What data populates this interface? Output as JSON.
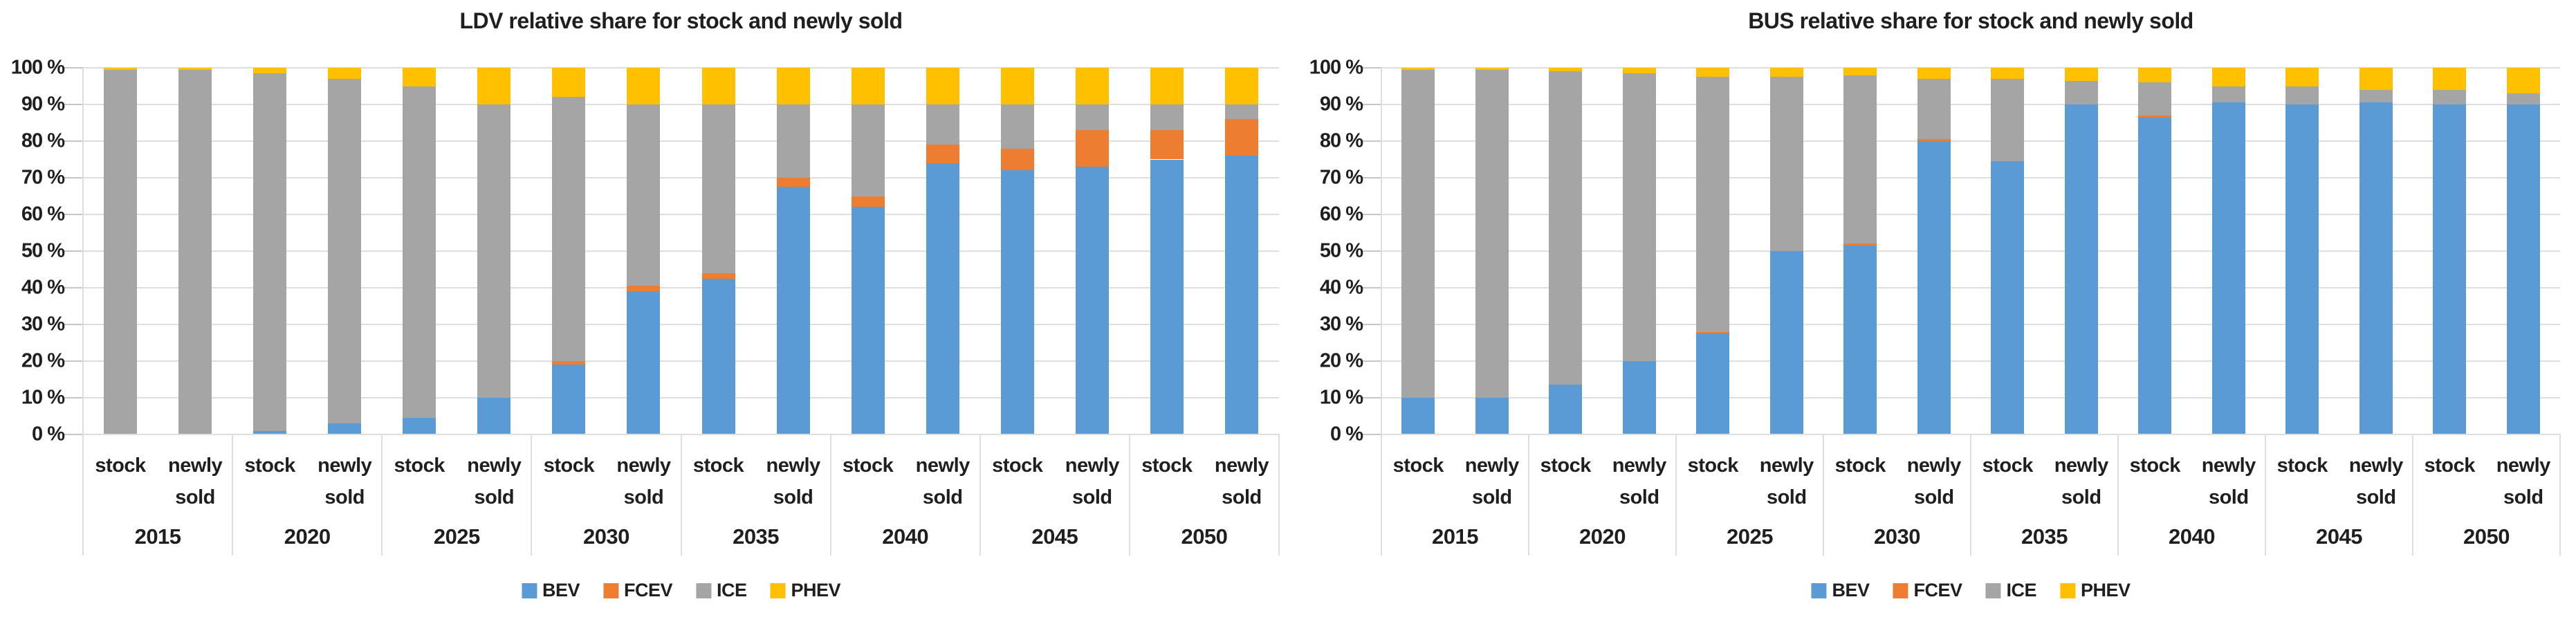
{
  "figure": {
    "background": "#FFFFFF",
    "grid_color": "#DEDEDE",
    "axis_color": "#C6C6C6",
    "text_color": "#1F1F1F",
    "legend_labels": [
      "BEV",
      "FCEV",
      "ICE",
      "PHEV"
    ],
    "series_colors": {
      "BEV": "#5B9BD5",
      "FCEV": "#ED7D31",
      "ICE": "#A5A5A5",
      "PHEV": "#FFC000"
    }
  },
  "chart_data": [
    {
      "id": "ldv",
      "type": "bar",
      "stacked": true,
      "unit": "%",
      "title": "LDV relative share for stock and newly sold",
      "ylim": [
        0,
        100
      ],
      "grid": true,
      "legend_position": "bottom",
      "ytick_labels": [
        "100 %",
        "90 %",
        "80 %",
        "70 %",
        "60 %",
        "50 %",
        "40 %",
        "30 %",
        "20 %",
        "10 %",
        "0 %"
      ],
      "years": [
        "2015",
        "2020",
        "2025",
        "2030",
        "2035",
        "2040",
        "2045",
        "2050"
      ],
      "bar_types": [
        "stock",
        "newly sold"
      ],
      "categories": [
        "2015 stock",
        "2015 newly sold",
        "2020 stock",
        "2020 newly sold",
        "2025 stock",
        "2025 newly sold",
        "2030 stock",
        "2030 newly sold",
        "2035 stock",
        "2035 newly sold",
        "2040 stock",
        "2040 newly sold",
        "2045 stock",
        "2045 newly sold",
        "2050 stock",
        "2050 newly sold"
      ],
      "series": [
        {
          "name": "BEV",
          "color": "#5B9BD5",
          "values": [
            0,
            0,
            1,
            3,
            4.5,
            10,
            19,
            39,
            42.5,
            67.5,
            62,
            74,
            72,
            73,
            75,
            76
          ]
        },
        {
          "name": "FCEV",
          "color": "#ED7D31",
          "values": [
            0,
            0,
            0,
            0,
            0,
            0,
            1,
            1.5,
            1.5,
            2.5,
            3,
            5,
            6,
            10,
            8,
            10
          ]
        },
        {
          "name": "ICE",
          "color": "#A5A5A5",
          "values": [
            99.5,
            99.5,
            97.5,
            94,
            90.5,
            80,
            72,
            49.5,
            46,
            20,
            25,
            11,
            12,
            7,
            7,
            4
          ]
        },
        {
          "name": "PHEV",
          "color": "#FFC000",
          "values": [
            0.5,
            0.5,
            1.5,
            3,
            5,
            10,
            8,
            10,
            10,
            10,
            10,
            10,
            10,
            10,
            10,
            10
          ]
        }
      ]
    },
    {
      "id": "bus",
      "type": "bar",
      "stacked": true,
      "unit": "%",
      "title": "BUS relative share for stock and newly sold",
      "ylim": [
        0,
        100
      ],
      "grid": true,
      "legend_position": "bottom",
      "ytick_labels": [
        "100 %",
        "90 %",
        "80 %",
        "70 %",
        "60 %",
        "50 %",
        "40 %",
        "30 %",
        "20 %",
        "10 %",
        "0 %"
      ],
      "years": [
        "2015",
        "2020",
        "2025",
        "2030",
        "2035",
        "2040",
        "2045",
        "2050"
      ],
      "bar_types": [
        "stock",
        "newly sold"
      ],
      "categories": [
        "2015 stock",
        "2015 newly sold",
        "2020 stock",
        "2020 newly sold",
        "2025 stock",
        "2025 newly sold",
        "2030 stock",
        "2030 newly sold",
        "2035 stock",
        "2035 newly sold",
        "2040 stock",
        "2040 newly sold",
        "2045 stock",
        "2045 newly sold",
        "2050 stock",
        "2050 newly sold"
      ],
      "series": [
        {
          "name": "BEV",
          "color": "#5B9BD5",
          "values": [
            10,
            10,
            13.5,
            20,
            27.5,
            50,
            51.5,
            80,
            74.5,
            90,
            86.5,
            90.5,
            90,
            90.5,
            90,
            90
          ]
        },
        {
          "name": "FCEV",
          "color": "#ED7D31",
          "values": [
            0,
            0,
            0,
            0,
            0.5,
            0,
            0.5,
            0.5,
            0,
            0,
            0.5,
            0,
            0,
            0,
            0,
            0
          ]
        },
        {
          "name": "ICE",
          "color": "#A5A5A5",
          "values": [
            89.5,
            89.5,
            85.5,
            78.5,
            69.5,
            47.5,
            46,
            16.5,
            22.5,
            6.5,
            9,
            4.5,
            5,
            3.5,
            4,
            3
          ]
        },
        {
          "name": "PHEV",
          "color": "#FFC000",
          "values": [
            0.5,
            0.5,
            1,
            1.5,
            2.5,
            2.5,
            2,
            3,
            3,
            3.5,
            4,
            5,
            5,
            6,
            6,
            7
          ]
        }
      ]
    }
  ]
}
